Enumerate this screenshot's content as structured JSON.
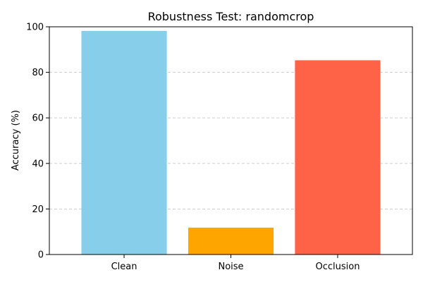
{
  "chart_data": {
    "type": "bar",
    "title": "Robustness Test: randomcrop",
    "xlabel": "",
    "ylabel": "Accuracy (%)",
    "categories": [
      "Clean",
      "Noise",
      "Occlusion"
    ],
    "values": [
      98.2,
      11.8,
      85.3
    ],
    "colors": [
      "#87ceeb",
      "#ffa500",
      "#ff6347"
    ],
    "ylim": [
      0,
      100
    ],
    "yticks": [
      0,
      20,
      40,
      60,
      80,
      100
    ],
    "grid": "y-dashed",
    "legend": "none"
  }
}
